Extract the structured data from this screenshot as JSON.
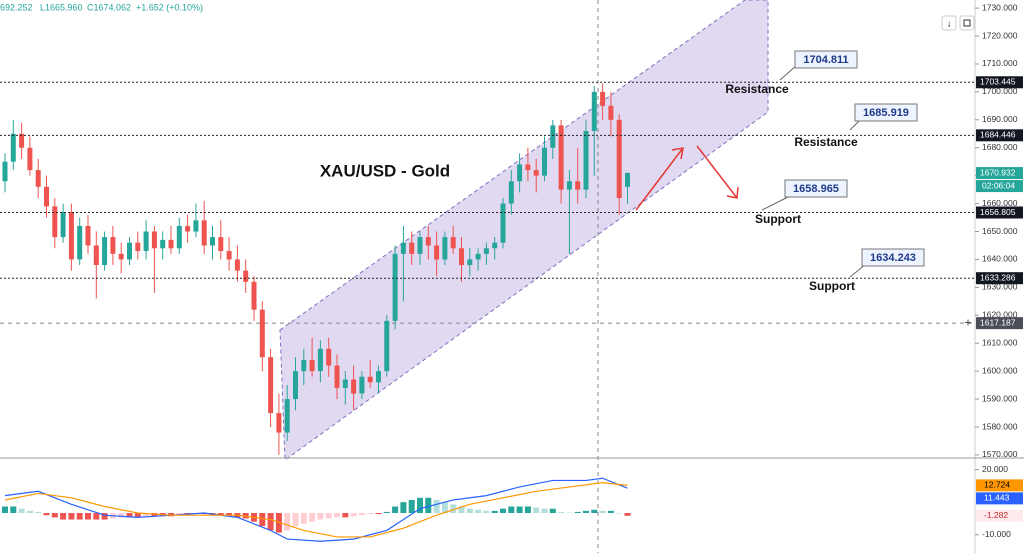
{
  "chart_data": [
    {
      "type": "candlestick",
      "title": "XAU/USD - Gold",
      "header": [
        "692.252",
        "L1665.960",
        "C1674.062",
        "+1.652 (+0.10%)"
      ],
      "ylim": [
        1568.9,
        1732.9
      ],
      "yticks": [
        {
          "value": 1570,
          "label": "1570.000"
        },
        {
          "value": 1580,
          "label": "1580.000"
        },
        {
          "value": 1590,
          "label": "1590.000"
        },
        {
          "value": 1600,
          "label": "1600.000"
        },
        {
          "value": 1610,
          "label": "1610.000"
        },
        {
          "value": 1620,
          "label": "1620.000"
        },
        {
          "value": 1630,
          "label": "1630.000"
        },
        {
          "value": 1640,
          "label": "1640.000"
        },
        {
          "value": 1650,
          "label": "1650.000"
        },
        {
          "value": 1660,
          "label": "1660.000"
        },
        {
          "value": 1670,
          "label": "1670.000"
        },
        {
          "value": 1680,
          "label": "1680.000"
        },
        {
          "value": 1690,
          "label": "1690.000"
        },
        {
          "value": 1700,
          "label": "1700.000"
        },
        {
          "value": 1710,
          "label": "1710.000"
        },
        {
          "value": 1720,
          "label": "1720.000"
        },
        {
          "value": 1730,
          "label": "1730.000"
        }
      ],
      "up_color": "#26a69a",
      "down_color": "#ef5350",
      "open": [
        1668,
        1675,
        1685,
        1680,
        1672,
        1666,
        1659,
        1648,
        1657,
        1640,
        1652,
        1645,
        1638,
        1648,
        1642,
        1640,
        1646,
        1643,
        1650,
        1644,
        1647,
        1644,
        1652,
        1650,
        1654,
        1645,
        1648,
        1643,
        1640,
        1636,
        1632,
        1622,
        1605,
        1585,
        1578,
        1590,
        1600,
        1604,
        1600,
        1608,
        1602,
        1594,
        1597,
        1592,
        1598,
        1596,
        1600,
        1618,
        1642,
        1646,
        1642,
        1648,
        1645,
        1640,
        1648,
        1644,
        1638,
        1640,
        1642,
        1644,
        1646,
        1660,
        1668,
        1674,
        1672,
        1670,
        1680,
        1688,
        1665,
        1668,
        1665,
        1686,
        1700,
        1695,
        1690,
        1666
      ],
      "high": [
        1678,
        1690,
        1689,
        1684,
        1676,
        1670,
        1662,
        1660,
        1660,
        1655,
        1656,
        1650,
        1650,
        1652,
        1646,
        1648,
        1650,
        1654,
        1652,
        1650,
        1652,
        1655,
        1656,
        1660,
        1661,
        1652,
        1654,
        1648,
        1645,
        1640,
        1634,
        1625,
        1608,
        1592,
        1595,
        1605,
        1608,
        1612,
        1611,
        1612,
        1606,
        1600,
        1602,
        1600,
        1604,
        1602,
        1620,
        1645,
        1652,
        1650,
        1650,
        1652,
        1650,
        1650,
        1652,
        1648,
        1644,
        1644,
        1646,
        1648,
        1662,
        1672,
        1678,
        1680,
        1676,
        1684,
        1690,
        1690,
        1672,
        1680,
        1690,
        1702,
        1703,
        1700,
        1692,
        1671
      ],
      "low": [
        1664,
        1672,
        1676,
        1670,
        1662,
        1655,
        1644,
        1646,
        1636,
        1638,
        1642,
        1626,
        1636,
        1638,
        1635,
        1638,
        1640,
        1640,
        1628,
        1640,
        1642,
        1642,
        1646,
        1648,
        1642,
        1640,
        1640,
        1636,
        1632,
        1628,
        1618,
        1600,
        1580,
        1570,
        1575,
        1586,
        1595,
        1598,
        1596,
        1598,
        1590,
        1588,
        1586,
        1590,
        1594,
        1592,
        1598,
        1615,
        1625,
        1638,
        1638,
        1640,
        1634,
        1638,
        1642,
        1632,
        1634,
        1636,
        1638,
        1640,
        1644,
        1656,
        1664,
        1668,
        1664,
        1668,
        1676,
        1660,
        1642,
        1660,
        1662,
        1670,
        1690,
        1684,
        1656,
        1660
      ],
      "close": [
        1675,
        1685,
        1680,
        1672,
        1666,
        1659,
        1648,
        1657,
        1640,
        1652,
        1645,
        1638,
        1648,
        1642,
        1640,
        1646,
        1643,
        1650,
        1644,
        1647,
        1644,
        1652,
        1650,
        1654,
        1645,
        1648,
        1643,
        1640,
        1636,
        1632,
        1622,
        1605,
        1585,
        1578,
        1590,
        1600,
        1604,
        1600,
        1608,
        1602,
        1594,
        1597,
        1592,
        1598,
        1596,
        1600,
        1618,
        1642,
        1646,
        1642,
        1648,
        1645,
        1640,
        1648,
        1644,
        1638,
        1640,
        1642,
        1644,
        1646,
        1660,
        1668,
        1674,
        1672,
        1670,
        1680,
        1688,
        1665,
        1668,
        1665,
        1686,
        1700,
        1695,
        1690,
        1662,
        1671
      ],
      "levels": [
        1703.445,
        1684.446,
        1656.805,
        1633.286
      ],
      "callouts": [
        {
          "value": 1704.811,
          "text": "Resistance"
        },
        {
          "value": 1685.919,
          "text": "Resistance"
        },
        {
          "value": 1658.965,
          "text": "Support"
        },
        {
          "value": 1634.243,
          "text": "Support"
        }
      ],
      "last_price": 1670.932,
      "countdown": "02:06:04",
      "crosshair": 1617.187
    },
    {
      "type": "macd",
      "ylim": [
        -18.4,
        24.4
      ],
      "yticks": [
        {
          "value": 20,
          "label": "20.000"
        },
        {
          "value": -10,
          "label": "-10.000"
        }
      ],
      "histogram": [
        3,
        3,
        2,
        1,
        0.5,
        -1,
        -2,
        -3,
        -3,
        -3,
        -3,
        -3,
        -3,
        -2.5,
        -2,
        -2,
        -2,
        -1.5,
        -1.5,
        -1.5,
        -1.5,
        -1,
        -1,
        -0.5,
        -0.5,
        -1,
        -1,
        -1.5,
        -2,
        -2.5,
        -4,
        -6,
        -8,
        -9,
        -8,
        -6,
        -5,
        -4,
        -3,
        -2.5,
        -2,
        -2,
        -1.5,
        -1,
        -0.5,
        -0.5,
        0.5,
        3,
        5,
        6,
        7,
        7,
        6,
        5,
        4,
        3,
        2,
        1.5,
        1,
        1,
        2,
        3,
        3,
        3,
        2.5,
        2,
        2,
        0.5,
        0.2,
        0.5,
        1,
        1.5,
        1,
        1,
        0,
        -1.282
      ],
      "hist_colors": {
        "up_grow": "#26a69a",
        "up_fall": "#b2dfdb",
        "down_grow": "#ef5350",
        "down_fall": "#ffcdd2"
      },
      "series": [
        {
          "name": "MACD",
          "color": "#2962ff",
          "x": [
            0,
            4,
            8,
            12,
            16,
            20,
            24,
            28,
            32,
            34,
            38,
            42,
            46,
            50,
            54,
            58,
            62,
            66,
            70,
            72,
            75
          ],
          "values": [
            8,
            10,
            4,
            -1,
            -2,
            -1,
            0,
            -2,
            -8,
            -12,
            -13,
            -12,
            -8,
            2,
            6,
            8,
            12,
            15,
            15,
            16,
            11.443
          ]
        },
        {
          "name": "Signal",
          "color": "#ff9800",
          "x": [
            0,
            4,
            8,
            12,
            16,
            20,
            24,
            28,
            32,
            36,
            40,
            44,
            48,
            52,
            56,
            60,
            64,
            68,
            72,
            75
          ],
          "values": [
            6,
            9,
            7,
            3,
            0,
            -1,
            -1,
            -1,
            -3,
            -8,
            -11,
            -11,
            -7,
            -1,
            4,
            7,
            10,
            12,
            14,
            12.724
          ]
        }
      ]
    }
  ]
}
